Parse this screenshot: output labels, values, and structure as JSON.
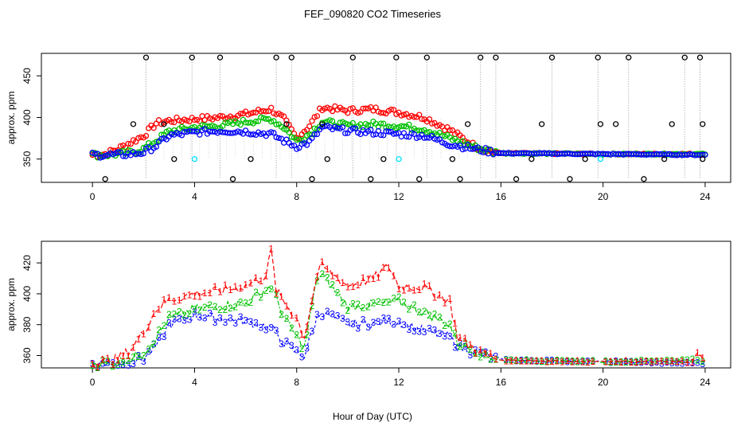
{
  "title": "FEF_090820  CO2 Timeseries",
  "xlabel": "Hour of Day (UTC)",
  "colors": {
    "s1": "#ff0000",
    "s2": "#00c000",
    "s3": "#0000ff",
    "flag": "#000000",
    "cyan": "#00e0ff",
    "grid": "#999999"
  },
  "chart_data": [
    {
      "type": "scatter",
      "panel": "top",
      "ylabel": "approx. ppm",
      "xlim": [
        -2,
        25
      ],
      "ylim": [
        322,
        477
      ],
      "xticks": [
        0,
        4,
        8,
        12,
        16,
        20,
        24
      ],
      "yticks": [
        350,
        400,
        450
      ],
      "knots": {
        "x": [
          0,
          0.5,
          1,
          1.5,
          2,
          2.5,
          3,
          4,
          5,
          6,
          7,
          7.5,
          8,
          8.5,
          9,
          10,
          11,
          12,
          13,
          14,
          15,
          15.8,
          16,
          20,
          24
        ],
        "s1": [
          355,
          356,
          362,
          370,
          378,
          393,
          396,
          398,
          400,
          404,
          410,
          398,
          375,
          390,
          412,
          408,
          410,
          406,
          400,
          385,
          365,
          358,
          357,
          356,
          356
        ],
        "s2": [
          355,
          355,
          356,
          358,
          362,
          372,
          383,
          388,
          390,
          395,
          398,
          388,
          372,
          380,
          395,
          390,
          392,
          390,
          386,
          375,
          364,
          358,
          357,
          356,
          356
        ],
        "s3": [
          355,
          355,
          355,
          356,
          358,
          366,
          378,
          382,
          384,
          383,
          380,
          372,
          365,
          370,
          388,
          384,
          382,
          380,
          378,
          368,
          362,
          358,
          357,
          356,
          355
        ]
      },
      "flag_points": [
        {
          "x": 2.1,
          "high": 472,
          "low": 326
        },
        {
          "x": 3.9,
          "high": 472,
          "low": 326
        },
        {
          "x": 5.0,
          "high": 472,
          "low": 326
        },
        {
          "x": 7.2,
          "high": 472,
          "low": 326
        },
        {
          "x": 7.8,
          "high": 472,
          "low": 326
        },
        {
          "x": 10.2,
          "high": 472,
          "low": 326
        },
        {
          "x": 11.9,
          "high": 472,
          "low": 326
        },
        {
          "x": 13.1,
          "high": 472,
          "low": 326
        },
        {
          "x": 15.2,
          "high": 472,
          "low": 326
        },
        {
          "x": 15.8,
          "high": 472,
          "low": 326
        },
        {
          "x": 18.0,
          "high": 472,
          "low": 326
        },
        {
          "x": 19.8,
          "high": 472,
          "low": 326
        },
        {
          "x": 21.0,
          "high": 472,
          "low": 326
        },
        {
          "x": 23.2,
          "high": 472,
          "low": 326
        },
        {
          "x": 23.8,
          "high": 472,
          "low": 326
        }
      ],
      "low_points": [
        {
          "x": 0.5,
          "y": 326
        },
        {
          "x": 3.2,
          "y": 350
        },
        {
          "x": 5.5,
          "y": 326
        },
        {
          "x": 6.2,
          "y": 350
        },
        {
          "x": 8.6,
          "y": 326
        },
        {
          "x": 9.2,
          "y": 350
        },
        {
          "x": 10.9,
          "y": 326
        },
        {
          "x": 11.4,
          "y": 350
        },
        {
          "x": 12.8,
          "y": 326
        },
        {
          "x": 14.1,
          "y": 350
        },
        {
          "x": 14.4,
          "y": 326
        },
        {
          "x": 16.6,
          "y": 326
        },
        {
          "x": 17.2,
          "y": 350
        },
        {
          "x": 18.7,
          "y": 326
        },
        {
          "x": 19.3,
          "y": 350
        },
        {
          "x": 21.6,
          "y": 326
        },
        {
          "x": 22.4,
          "y": 350
        },
        {
          "x": 23.9,
          "y": 350
        }
      ],
      "mid_points": [
        {
          "x": 1.6,
          "y": 392
        },
        {
          "x": 2.8,
          "y": 392
        },
        {
          "x": 7.6,
          "y": 392
        },
        {
          "x": 9.0,
          "y": 392
        },
        {
          "x": 14.7,
          "y": 392
        },
        {
          "x": 17.6,
          "y": 392
        },
        {
          "x": 19.9,
          "y": 392
        },
        {
          "x": 20.5,
          "y": 392
        },
        {
          "x": 22.7,
          "y": 392
        },
        {
          "x": 23.9,
          "y": 392
        }
      ],
      "cyan_points": [
        {
          "x": 4.0,
          "y": 350
        },
        {
          "x": 12.0,
          "y": 350
        },
        {
          "x": 19.9,
          "y": 350
        }
      ]
    },
    {
      "type": "line",
      "panel": "bottom",
      "ylabel": "approx. ppm",
      "xlim": [
        -2,
        25
      ],
      "ylim": [
        352,
        434
      ],
      "xticks": [
        0,
        4,
        8,
        12,
        16,
        20,
        24
      ],
      "yticks": [
        360,
        380,
        400,
        420
      ],
      "series": [
        {
          "name": "1",
          "x": [
            0,
            0.5,
            1,
            1.5,
            2,
            2.5,
            3,
            4,
            5,
            6,
            6.8,
            7,
            7.2,
            7.5,
            8,
            8.3,
            8.8,
            9,
            10,
            11,
            11.6,
            12,
            13,
            14,
            14.3,
            15,
            15.8,
            16,
            20,
            23.5,
            23.7,
            24
          ],
          "y": [
            355,
            356,
            358,
            364,
            375,
            390,
            396,
            400,
            402,
            405,
            412,
            428,
            402,
            395,
            384,
            372,
            412,
            418,
            405,
            410,
            418,
            405,
            404,
            395,
            372,
            364,
            358,
            357,
            356,
            356,
            362,
            356
          ]
        },
        {
          "name": "2",
          "x": [
            0,
            0.5,
            1,
            1.5,
            2,
            2.5,
            3,
            4,
            5,
            6,
            7,
            7.5,
            8,
            8.3,
            8.8,
            9,
            10,
            11,
            12,
            13,
            14,
            14.3,
            15,
            15.8,
            16,
            20,
            23.5,
            24
          ],
          "y": [
            355,
            355,
            356,
            358,
            362,
            372,
            384,
            390,
            392,
            394,
            405,
            385,
            372,
            365,
            410,
            412,
            392,
            393,
            395,
            388,
            380,
            368,
            363,
            358,
            357,
            356,
            357,
            356
          ]
        },
        {
          "name": "3",
          "x": [
            0,
            0.5,
            1,
            1.5,
            2,
            2.5,
            3,
            4,
            5,
            6,
            7,
            7.5,
            8,
            8.3,
            8.8,
            9,
            10,
            11,
            12,
            13,
            14,
            14.3,
            15,
            15.8,
            16,
            20,
            24
          ],
          "y": [
            355,
            355,
            355,
            356,
            358,
            366,
            380,
            386,
            384,
            382,
            378,
            368,
            362,
            360,
            385,
            388,
            380,
            381,
            382,
            376,
            372,
            366,
            362,
            358,
            357,
            356,
            355
          ]
        }
      ]
    }
  ]
}
